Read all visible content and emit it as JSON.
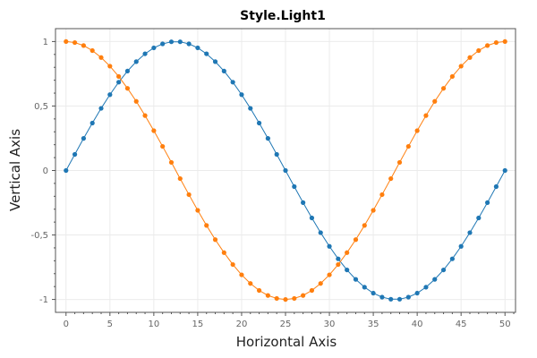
{
  "chart_data": {
    "type": "scatter",
    "title": "Style.Light1",
    "xlabel": "Horizontal Axis",
    "ylabel": "Vertical Axis",
    "xlim": [
      -1.2,
      51.2
    ],
    "ylim": [
      -1.1,
      1.1
    ],
    "x_ticks": [
      0,
      5,
      10,
      15,
      20,
      25,
      30,
      35,
      40,
      45,
      50
    ],
    "x_tick_labels": [
      "0",
      "5",
      "10",
      "15",
      "20",
      "25",
      "30",
      "35",
      "40",
      "45",
      "50"
    ],
    "y_ticks": [
      1,
      0.5,
      0,
      -0.5,
      -1
    ],
    "y_tick_labels": [
      "1",
      "0,5",
      "0",
      "-0,5",
      "-1"
    ],
    "grid": true,
    "colors": {
      "blue": "#1f77b4",
      "orange": "#ff7f0e"
    },
    "x": [
      0,
      1,
      2,
      3,
      4,
      5,
      6,
      7,
      8,
      9,
      10,
      11,
      12,
      13,
      14,
      15,
      16,
      17,
      18,
      19,
      20,
      21,
      22,
      23,
      24,
      25,
      26,
      27,
      28,
      29,
      30,
      31,
      32,
      33,
      34,
      35,
      36,
      37,
      38,
      39,
      40,
      41,
      42,
      43,
      44,
      45,
      46,
      47,
      48,
      49,
      50
    ],
    "series": [
      {
        "color": "#1f77b4",
        "values": [
          0.0,
          0.125,
          0.249,
          0.368,
          0.482,
          0.588,
          0.685,
          0.771,
          0.844,
          0.905,
          0.951,
          0.982,
          0.998,
          0.998,
          0.982,
          0.951,
          0.905,
          0.844,
          0.771,
          0.685,
          0.588,
          0.482,
          0.368,
          0.249,
          0.125,
          0.0,
          -0.125,
          -0.249,
          -0.368,
          -0.482,
          -0.588,
          -0.685,
          -0.771,
          -0.844,
          -0.905,
          -0.951,
          -0.982,
          -0.998,
          -0.998,
          -0.982,
          -0.951,
          -0.905,
          -0.844,
          -0.771,
          -0.685,
          -0.588,
          -0.482,
          -0.368,
          -0.249,
          -0.125,
          0.0
        ]
      },
      {
        "color": "#ff7f0e",
        "values": [
          1.0,
          0.992,
          0.969,
          0.93,
          0.876,
          0.809,
          0.729,
          0.637,
          0.536,
          0.426,
          0.309,
          0.187,
          0.063,
          -0.063,
          -0.187,
          -0.309,
          -0.426,
          -0.536,
          -0.637,
          -0.729,
          -0.809,
          -0.876,
          -0.93,
          -0.969,
          -0.992,
          -1.0,
          -0.992,
          -0.969,
          -0.93,
          -0.876,
          -0.809,
          -0.729,
          -0.637,
          -0.536,
          -0.426,
          -0.309,
          -0.187,
          -0.063,
          0.063,
          0.187,
          0.309,
          0.426,
          0.536,
          0.637,
          0.729,
          0.809,
          0.876,
          0.93,
          0.969,
          0.992,
          1.0
        ]
      }
    ]
  }
}
